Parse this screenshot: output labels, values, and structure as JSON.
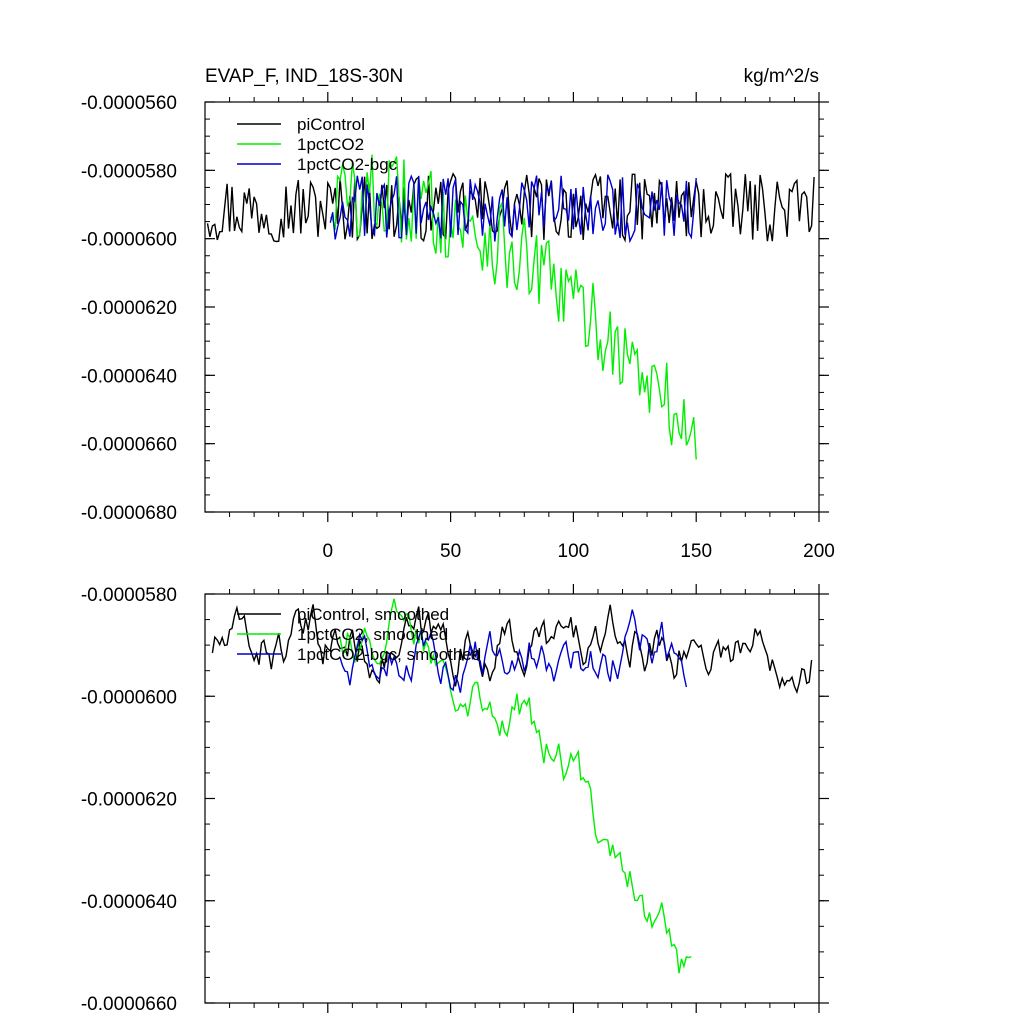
{
  "chart_data": [
    {
      "type": "line",
      "title": "EVAP_F, IND_18S-30N",
      "units": "kg/m^2/s",
      "xlim": [
        -50,
        200
      ],
      "ylim": [
        -6.8e-05,
        -5.6e-05
      ],
      "x_ticks": [
        0,
        50,
        100,
        150,
        200
      ],
      "y_ticks": [
        -5.6e-05,
        -5.8e-05,
        -6e-05,
        -6.2e-05,
        -6.4e-05,
        -6.6e-05,
        -6.8e-05
      ],
      "y_tick_labels": [
        "-0.0000560",
        "-0.0000580",
        "-0.0000600",
        "-0.0000620",
        "-0.0000640",
        "-0.0000660",
        "-0.0000680"
      ],
      "legend_position": "top-left",
      "series": [
        {
          "name": "piControl",
          "color": "#000000",
          "x_start": -49,
          "x_end": 198,
          "mean": -5.91e-05,
          "noise": 1e-06
        },
        {
          "name": "1pctCO2",
          "color": "#00ee00",
          "x_start": 1,
          "x_end": 150,
          "start_value": -5.88e-05,
          "end_value": -6.6e-05,
          "noise": 1.3e-06
        },
        {
          "name": "1pctCO2-bgc",
          "color": "#0000cc",
          "x_start": 1,
          "x_end": 150,
          "mean": -5.91e-05,
          "noise": 1e-06
        }
      ]
    },
    {
      "type": "line",
      "title": "",
      "xlim": [
        -50,
        200
      ],
      "ylim": [
        -6.6e-05,
        -5.8e-05
      ],
      "x_ticks": [
        0,
        50,
        100,
        150,
        200
      ],
      "y_ticks": [
        -5.8e-05,
        -6e-05,
        -6.2e-05,
        -6.4e-05,
        -6.6e-05
      ],
      "y_tick_labels": [
        "-0.0000580",
        "-0.0000600",
        "-0.0000620",
        "-0.0000640",
        "-0.0000660"
      ],
      "legend_position": "top-left",
      "series": [
        {
          "name": "piControl, smoothed",
          "color": "#000000",
          "x_start": -47,
          "x_end": 197,
          "mean": -5.9e-05,
          "noise": 4e-07
        },
        {
          "name": "1pctCO2, smoothed",
          "color": "#00ee00",
          "x_start": 5,
          "x_end": 148,
          "start_value": -5.87e-05,
          "end_value": -6.56e-05,
          "noise": 4e-07
        },
        {
          "name": "1pctCO2-bgc, smoothed",
          "color": "#0000cc",
          "x_start": 5,
          "x_end": 146,
          "mean": -5.91e-05,
          "noise": 4e-07
        }
      ]
    }
  ]
}
